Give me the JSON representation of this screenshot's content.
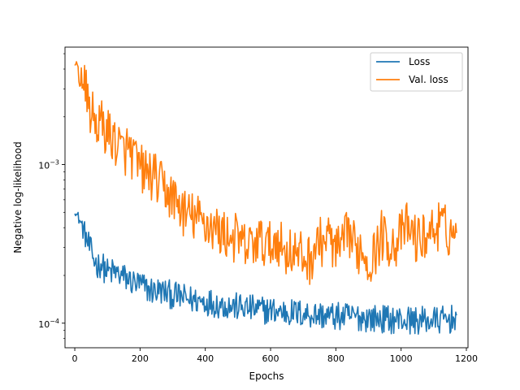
{
  "chart_data": {
    "type": "line",
    "title": "",
    "xlabel": "Epochs",
    "ylabel": "Negative log-likelihood",
    "xlim": [
      -30,
      1205
    ],
    "ylim": [
      7e-05,
      0.0055
    ],
    "yscale": "log",
    "grid": false,
    "legend_position": "top-right",
    "x_ticks": [
      0,
      200,
      400,
      600,
      800,
      1000,
      1200
    ],
    "x_tick_labels": [
      "0",
      "200",
      "400",
      "600",
      "800",
      "1000",
      "1200"
    ],
    "y_major_ticks": [
      0.0001,
      0.001
    ],
    "y_tick_labels": [
      {
        "base": "10",
        "exponent": "−4"
      },
      {
        "base": "10",
        "exponent": "−3"
      }
    ],
    "y_minor_ticks": [
      8e-05,
      9e-05,
      0.0002,
      0.0003,
      0.0004,
      0.0005,
      0.0006,
      0.0007,
      0.0008,
      0.0009,
      0.002,
      0.003,
      0.004,
      0.005
    ],
    "series": [
      {
        "name": "Loss",
        "color": "#1f77b4",
        "x": [
          0,
          10,
          20,
          30,
          40,
          50,
          60,
          70,
          80,
          90,
          100,
          120,
          140,
          160,
          180,
          200,
          220,
          240,
          260,
          280,
          300,
          330,
          360,
          400,
          440,
          480,
          520,
          560,
          600,
          640,
          680,
          720,
          760,
          800,
          850,
          900,
          950,
          1000,
          1050,
          1100,
          1150,
          1170
        ],
        "y": [
          0.0005,
          0.00047,
          0.00042,
          0.00037,
          0.00032,
          0.00028,
          0.00025,
          0.00023,
          0.00024,
          0.00022,
          0.00021,
          0.00021,
          0.0002,
          0.00019,
          0.00018,
          0.000175,
          0.000165,
          0.00016,
          0.00016,
          0.000155,
          0.00015,
          0.000145,
          0.00014,
          0.000138,
          0.000132,
          0.000128,
          0.000125,
          0.000122,
          0.00012,
          0.000118,
          0.000116,
          0.000114,
          0.000112,
          0.00011,
          0.00011,
          0.000108,
          0.000106,
          0.000105,
          0.000104,
          0.000104,
          0.000105,
          0.000112
        ]
      },
      {
        "name": "Val. loss",
        "color": "#ff7f0e",
        "x": [
          0,
          5,
          10,
          15,
          20,
          30,
          40,
          50,
          60,
          70,
          80,
          90,
          100,
          110,
          120,
          130,
          140,
          150,
          160,
          170,
          180,
          200,
          220,
          240,
          260,
          280,
          300,
          320,
          340,
          360,
          380,
          400,
          420,
          440,
          460,
          480,
          500,
          520,
          540,
          560,
          580,
          600,
          620,
          640,
          660,
          680,
          700,
          720,
          740,
          760,
          780,
          800,
          820,
          840,
          860,
          880,
          900,
          920,
          940,
          960,
          980,
          1000,
          1020,
          1040,
          1060,
          1080,
          1100,
          1120,
          1140,
          1160,
          1170
        ],
        "y": [
          0.0042,
          0.0041,
          0.0039,
          0.0036,
          0.0035,
          0.0031,
          0.0025,
          0.0021,
          0.0019,
          0.0018,
          0.0018,
          0.0017,
          0.0016,
          0.0015,
          0.00145,
          0.00135,
          0.00125,
          0.0012,
          0.00125,
          0.0012,
          0.0011,
          0.00095,
          0.00088,
          0.00085,
          0.00075,
          0.00068,
          0.00062,
          0.00055,
          0.00048,
          0.00047,
          0.00045,
          0.00043,
          0.00041,
          0.00038,
          0.00036,
          0.00035,
          0.00034,
          0.0003,
          0.00031,
          0.00033,
          0.00032,
          0.0003,
          0.00035,
          0.00028,
          0.00029,
          0.00027,
          0.00026,
          0.00025,
          0.00031,
          0.00033,
          0.00035,
          0.00028,
          0.0003,
          0.00038,
          0.00029,
          0.0003,
          0.00024,
          0.00028,
          0.00036,
          0.00033,
          0.00031,
          0.00036,
          0.00041,
          0.00035,
          0.00033,
          0.00037,
          0.00039,
          0.00042,
          0.00038,
          0.00037,
          0.00037
        ]
      }
    ]
  }
}
